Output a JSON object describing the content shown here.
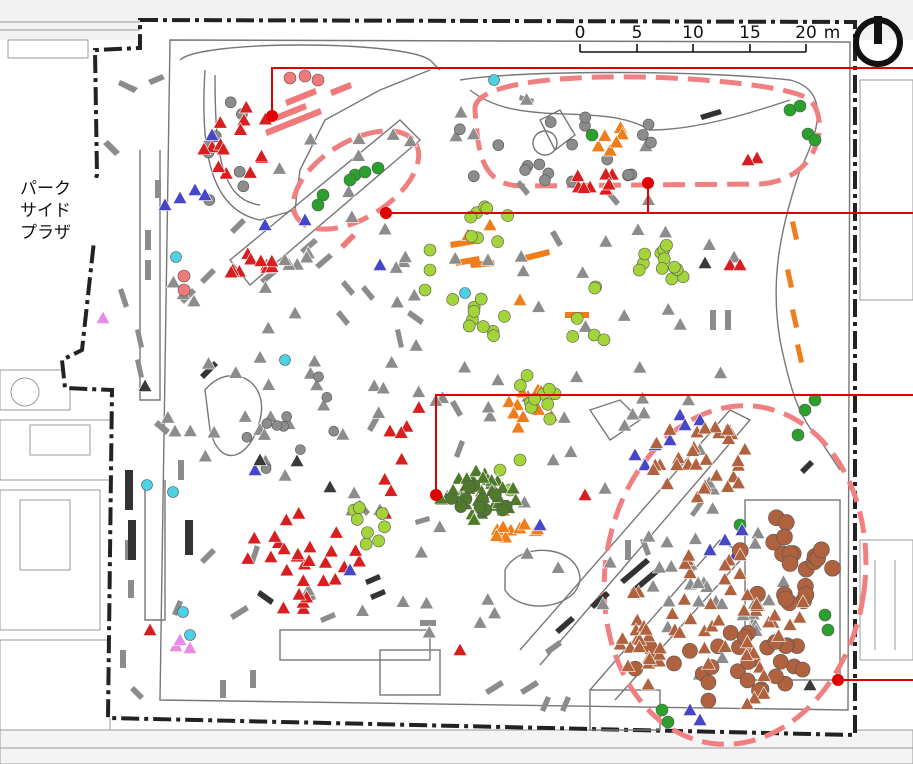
{
  "map": {
    "area_label_lines": [
      "パーク",
      "サイド",
      "プラザ"
    ],
    "scale_bar": {
      "ticks": [
        "0",
        "5",
        "10",
        "15",
        "20"
      ],
      "unit": "m"
    },
    "north_arrow": "north-arrow-icon",
    "colors": {
      "boundary": "#222222",
      "callout": "#e00000",
      "dashed_zone": "#f08080",
      "gray_marker": "#8c8c8c",
      "red_marker": "#d81e1e",
      "orange_marker": "#ef7d1a",
      "lime_marker": "#a3d43a",
      "darkgreen_marker": "#4f7a2c",
      "green_marker": "#2ca02c",
      "blue_marker": "#4646c8",
      "cyan_marker": "#4cd2e4",
      "pink_marker": "#e68ce6",
      "salmon_marker": "#f07a7a",
      "brown_marker": "#b0623f",
      "black_marker": "#3a3a3a"
    }
  }
}
